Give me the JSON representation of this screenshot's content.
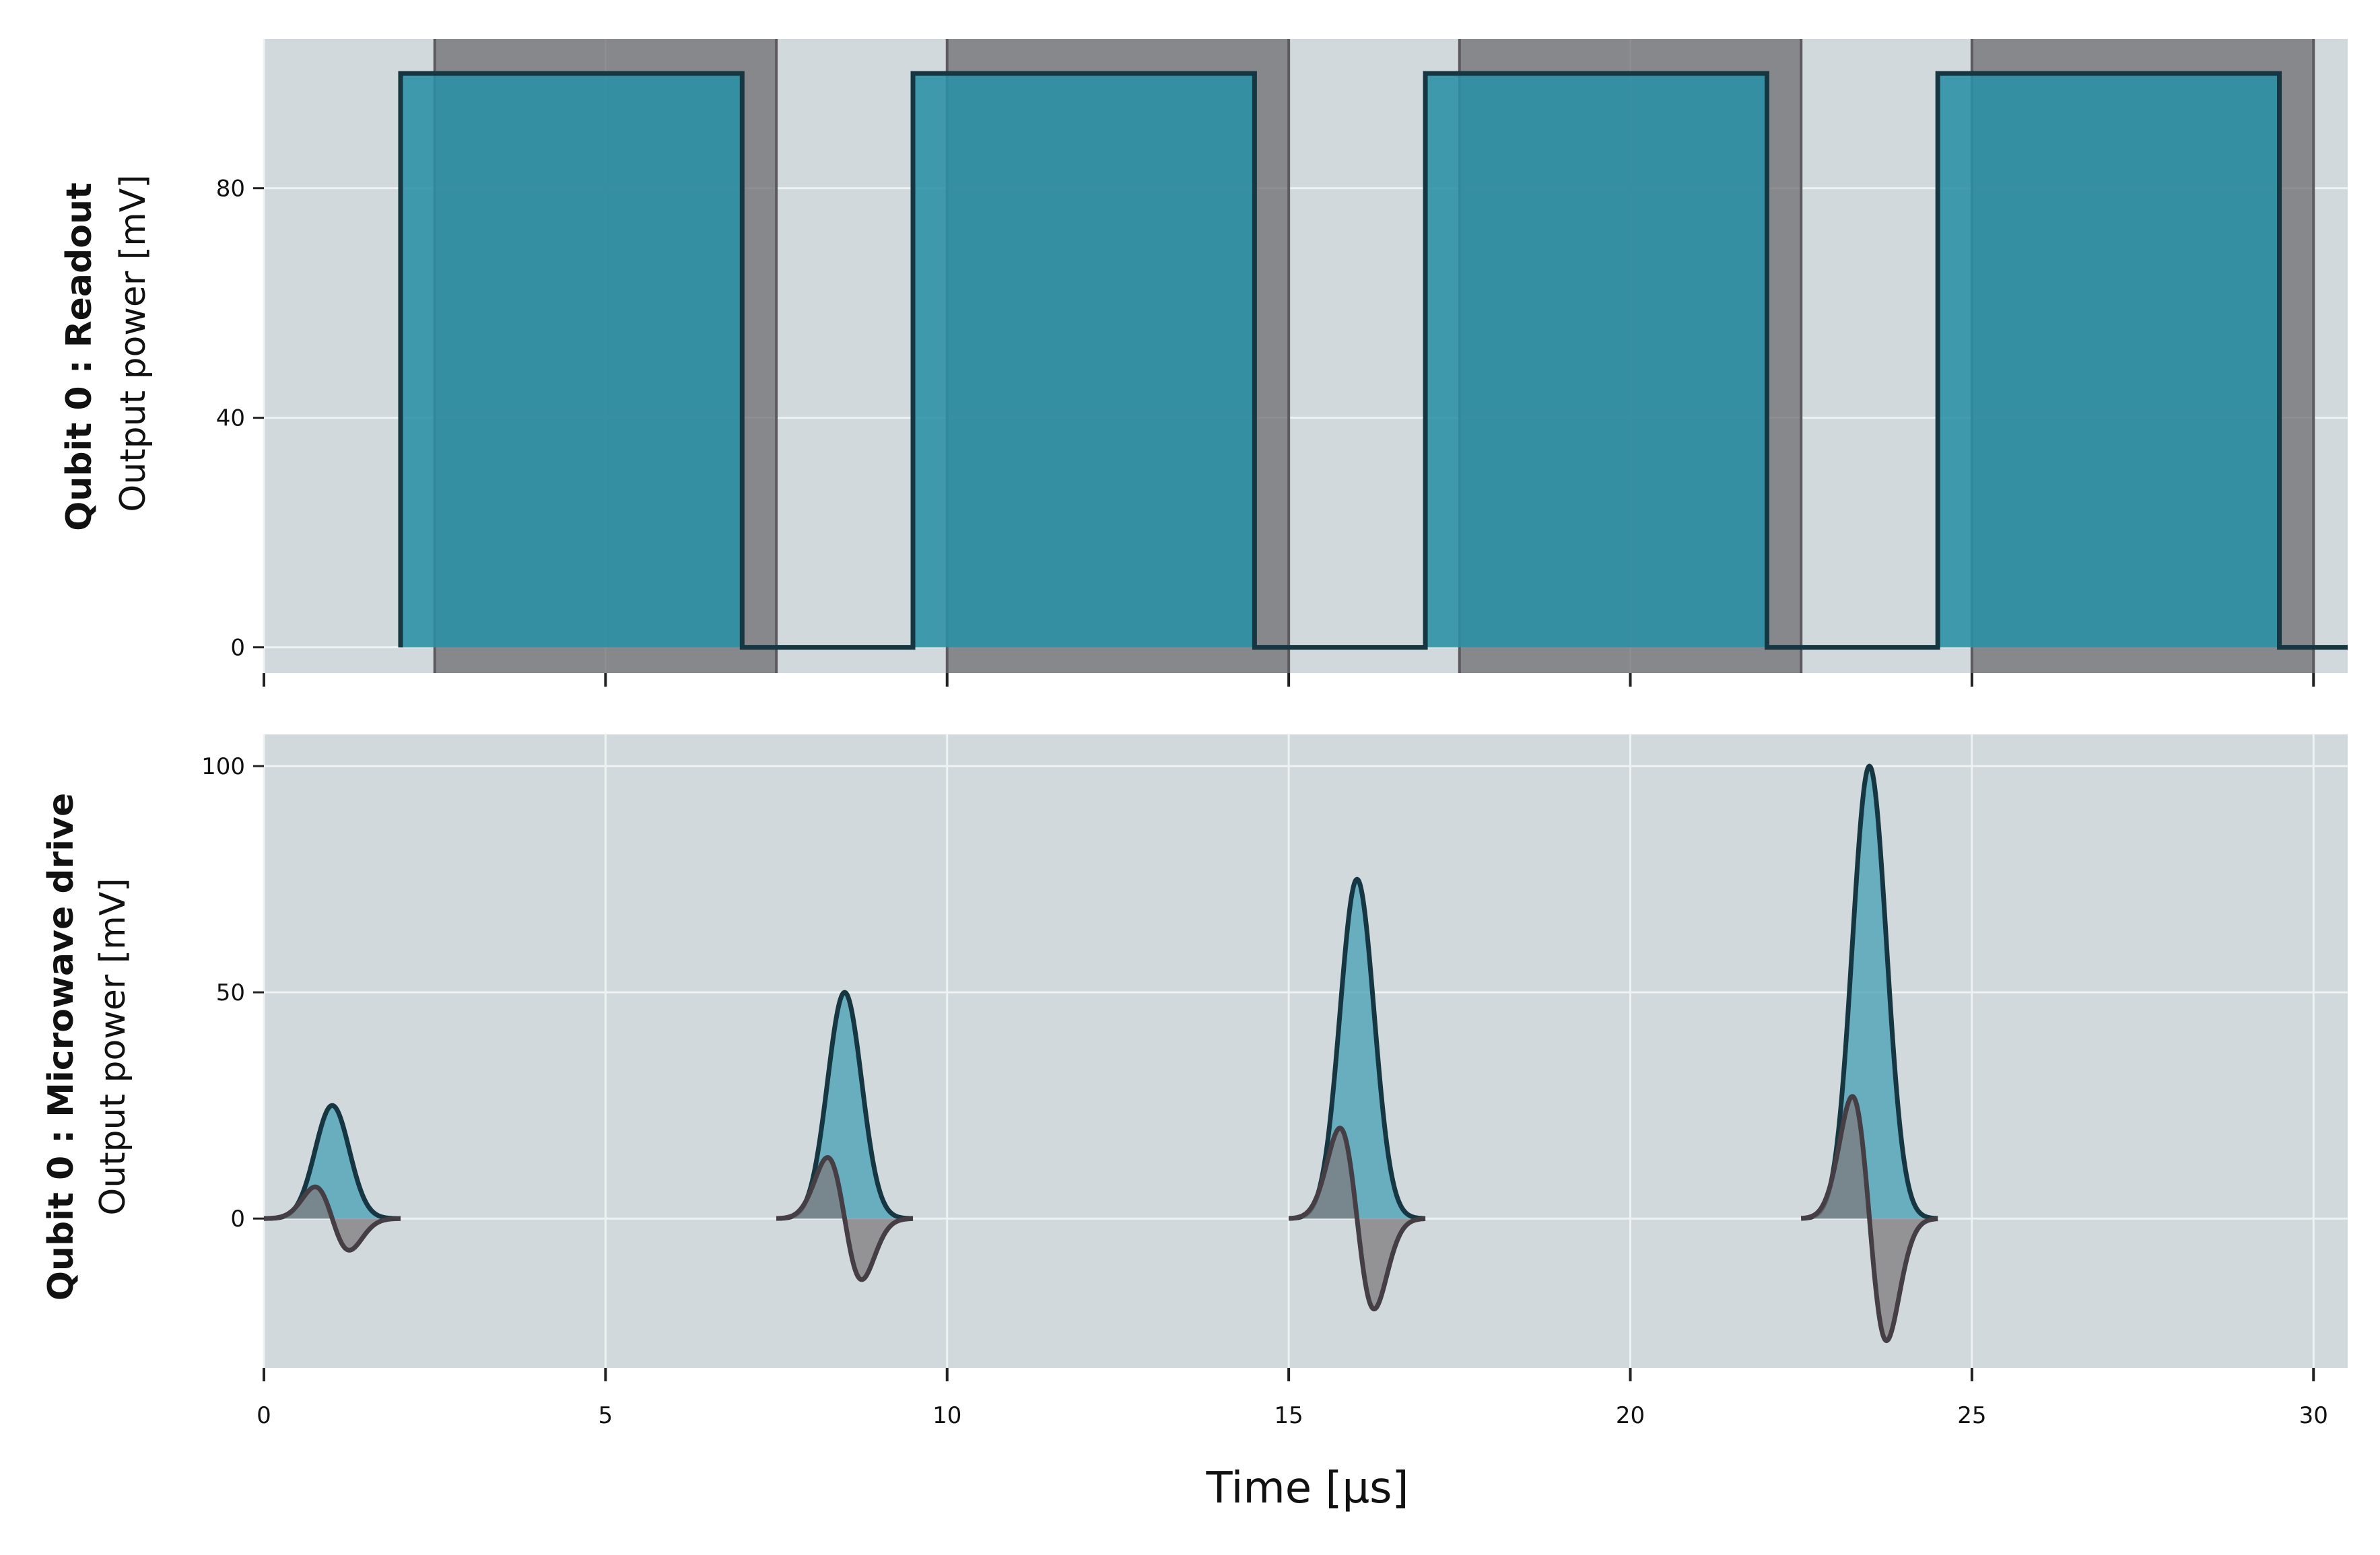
{
  "chart_data": {
    "type": "area",
    "xlabel": "Time [μs]",
    "xlim": [
      0,
      30.5
    ],
    "xticks": [
      0,
      5,
      10,
      15,
      20,
      25,
      30
    ],
    "grid": true,
    "colors": {
      "panel_bg": "#d1d9dc",
      "grid": "#eef2f3",
      "outline": "#163742",
      "readout_fill": "#2a8fa5",
      "drive_fill": "#4ea3b6",
      "quadrature_line": "#453f45",
      "quadrature_fill": "#7d7a7e",
      "acquire_window": "#6e6c70"
    },
    "panels": [
      {
        "id": "readout",
        "ylabel_bold": "Qubit 0 :  Readout",
        "ylabel": "Output power [mV]",
        "ylim": [
          -4.5,
          106
        ],
        "yticks": [
          0,
          40,
          80
        ],
        "acquisition_windows": [
          [
            2.5,
            7.5
          ],
          [
            10.0,
            15.0
          ],
          [
            17.5,
            22.5
          ],
          [
            25.0,
            30.0
          ]
        ],
        "series": [
          {
            "pulses": [
              [
                2.0,
                7.0
              ],
              [
                9.5,
                14.5
              ],
              [
                17.0,
                22.0
              ],
              [
                24.5,
                29.5
              ]
            ],
            "amplitude": 100,
            "x_end": 30.5
          }
        ]
      },
      {
        "id": "drive",
        "ylabel_bold": "Qubit 0 :  Microwave drive",
        "ylabel": "Output power [mV]",
        "ylim": [
          -33,
          107
        ],
        "yticks": [
          0,
          50,
          100
        ],
        "series": [
          {
            "kind": "in-phase",
            "pulses": [
              {
                "center": 1.0,
                "amplitude": 25,
                "start": 0.0,
                "end": 2.0
              },
              {
                "center": 8.5,
                "amplitude": 50,
                "start": 7.5,
                "end": 9.5
              },
              {
                "center": 16.0,
                "amplitude": 75,
                "start": 15.0,
                "end": 17.0
              },
              {
                "center": 23.5,
                "amplitude": 100,
                "start": 22.5,
                "end": 24.5
              }
            ]
          },
          {
            "kind": "quadrature",
            "pulses": [
              {
                "center": 1.0,
                "amplitude": 7,
                "start": 0.0,
                "end": 2.0
              },
              {
                "center": 8.5,
                "amplitude": 13.5,
                "start": 7.5,
                "end": 9.5
              },
              {
                "center": 16.0,
                "amplitude": 20,
                "start": 15.0,
                "end": 17.0
              },
              {
                "center": 23.5,
                "amplitude": 27,
                "start": 22.5,
                "end": 24.5
              }
            ]
          }
        ]
      }
    ]
  }
}
